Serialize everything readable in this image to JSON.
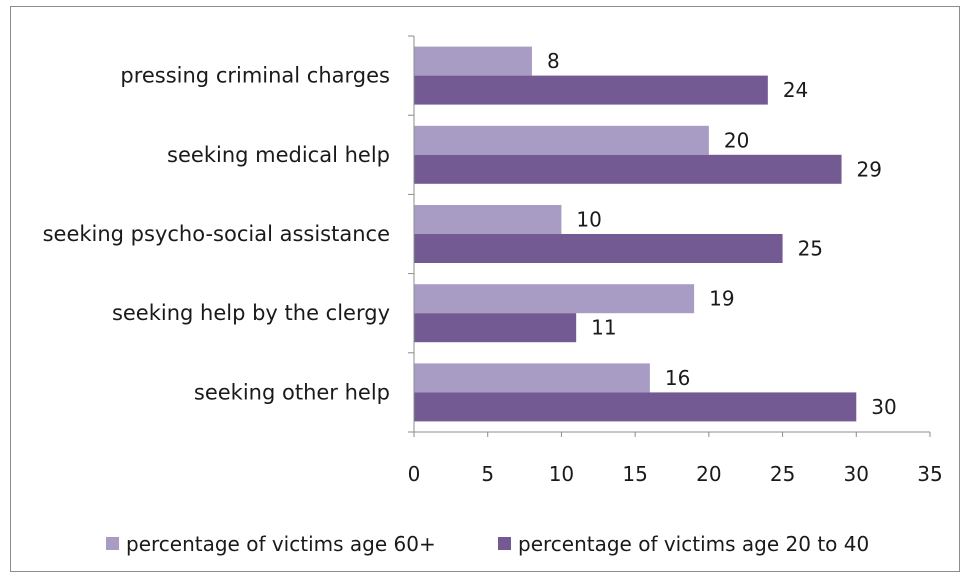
{
  "chart_data": {
    "type": "bar",
    "orientation": "horizontal",
    "categories": [
      "pressing criminal charges",
      "seeking medical help",
      "seeking psycho-social assistance",
      "seeking help by the clergy",
      "seeking other help"
    ],
    "series": [
      {
        "name": "percentage of victims age 60+",
        "color": "#a89bc4",
        "values": [
          8,
          20,
          10,
          19,
          16
        ]
      },
      {
        "name": "percentage of victims age 20 to 40",
        "color": "#745a93",
        "values": [
          24,
          29,
          25,
          11,
          30
        ]
      }
    ],
    "xlim": [
      0,
      35
    ],
    "xticks": [
      0,
      5,
      10,
      15,
      20,
      25,
      30,
      35
    ],
    "grid": false,
    "legend_position": "bottom"
  }
}
